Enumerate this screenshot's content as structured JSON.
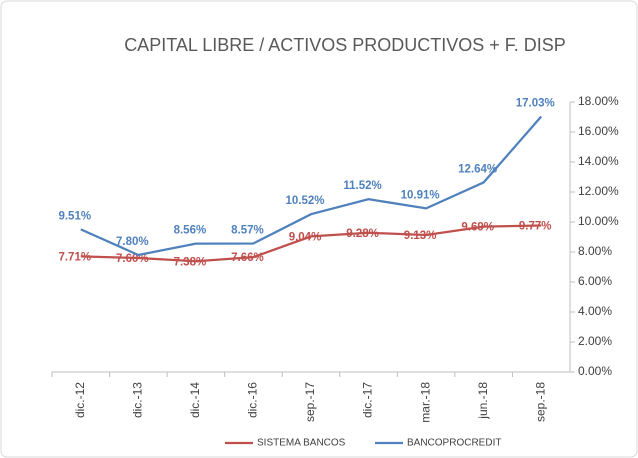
{
  "chart_data": {
    "type": "line",
    "title": "CAPITAL LIBRE / ACTIVOS PRODUCTIVOS + F. DISP",
    "categories": [
      "dic.-12",
      "dic.-13",
      "dic.-14",
      "dic.-16",
      "sep.-17",
      "dic.-17",
      "mar.-18",
      "jun.-18",
      "sep.-18"
    ],
    "series": [
      {
        "name": "SISTEMA BANCOS",
        "color": "#c0504d",
        "values": [
          7.71,
          7.6,
          7.38,
          7.66,
          9.04,
          9.28,
          9.13,
          9.69,
          9.77
        ],
        "value_labels": [
          "7.71%",
          "7.60%",
          "7.38%",
          "7.66%",
          "9.04%",
          "9.28%",
          "9.13%",
          "9.69%",
          "9.77%"
        ]
      },
      {
        "name": "BANCOPROCREDIT",
        "color": "#4f81bd",
        "values": [
          9.51,
          7.8,
          8.56,
          8.57,
          10.52,
          11.52,
          10.91,
          12.64,
          17.03
        ],
        "value_labels": [
          "9.51%",
          "7.80%",
          "8.56%",
          "8.57%",
          "10.52%",
          "11.52%",
          "10.91%",
          "12.64%",
          "17.03%"
        ]
      }
    ],
    "ylim": [
      0,
      18
    ],
    "yticks": [
      {
        "value": 0,
        "label": "0.00%"
      },
      {
        "value": 2,
        "label": "2.00%"
      },
      {
        "value": 4,
        "label": "4.00%"
      },
      {
        "value": 6,
        "label": "6.00%"
      },
      {
        "value": 8,
        "label": "8.00%"
      },
      {
        "value": 10,
        "label": "10.00%"
      },
      {
        "value": 12,
        "label": "12.00%"
      },
      {
        "value": 14,
        "label": "14.00%"
      },
      {
        "value": 16,
        "label": "16.00%"
      },
      {
        "value": 18,
        "label": "18.00%"
      }
    ],
    "y_axis_side": "right",
    "legend": "bottom"
  }
}
